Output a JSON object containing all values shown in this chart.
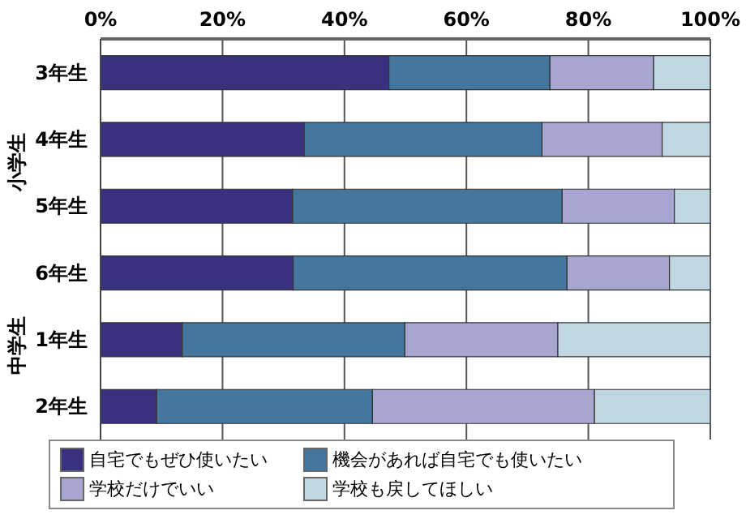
{
  "chart_data": {
    "type": "bar",
    "orientation": "horizontal",
    "stacked": true,
    "categories": [
      "3年生",
      "4年生",
      "5年生",
      "6年生",
      "1年生",
      "2年生"
    ],
    "series": [
      {
        "name": "自宅でもぜひ使いたい",
        "color": "#37317f",
        "values": [
          47.3,
          33.4,
          31.5,
          31.6,
          13.4,
          9.2
        ]
      },
      {
        "name": "機会があれば自宅でも使いたい",
        "color": "#45779e",
        "values": [
          26.4,
          39.0,
          44.2,
          44.9,
          36.5,
          35.4
        ]
      },
      {
        "name": "学校だけでいい",
        "color": "#a6a6d0",
        "values": [
          17.0,
          19.7,
          18.4,
          16.8,
          25.1,
          36.4
        ]
      },
      {
        "name": "学校も戻してほしい",
        "color": "#c0d6e0",
        "values": [
          9.3,
          7.9,
          5.9,
          6.7,
          25.0,
          19.0
        ]
      }
    ],
    "xlim": [
      0,
      100
    ],
    "xticks": [
      {
        "value": 0,
        "label": "0%"
      },
      {
        "value": 20,
        "label": "20%"
      },
      {
        "value": 40,
        "label": "40%"
      },
      {
        "value": 60,
        "label": "60%"
      },
      {
        "value": 80,
        "label": "80%"
      },
      {
        "value": 100,
        "label": "100%"
      }
    ],
    "grid": "x",
    "legend": "bottom",
    "annotations": [
      "小学生",
      "中学生"
    ]
  }
}
